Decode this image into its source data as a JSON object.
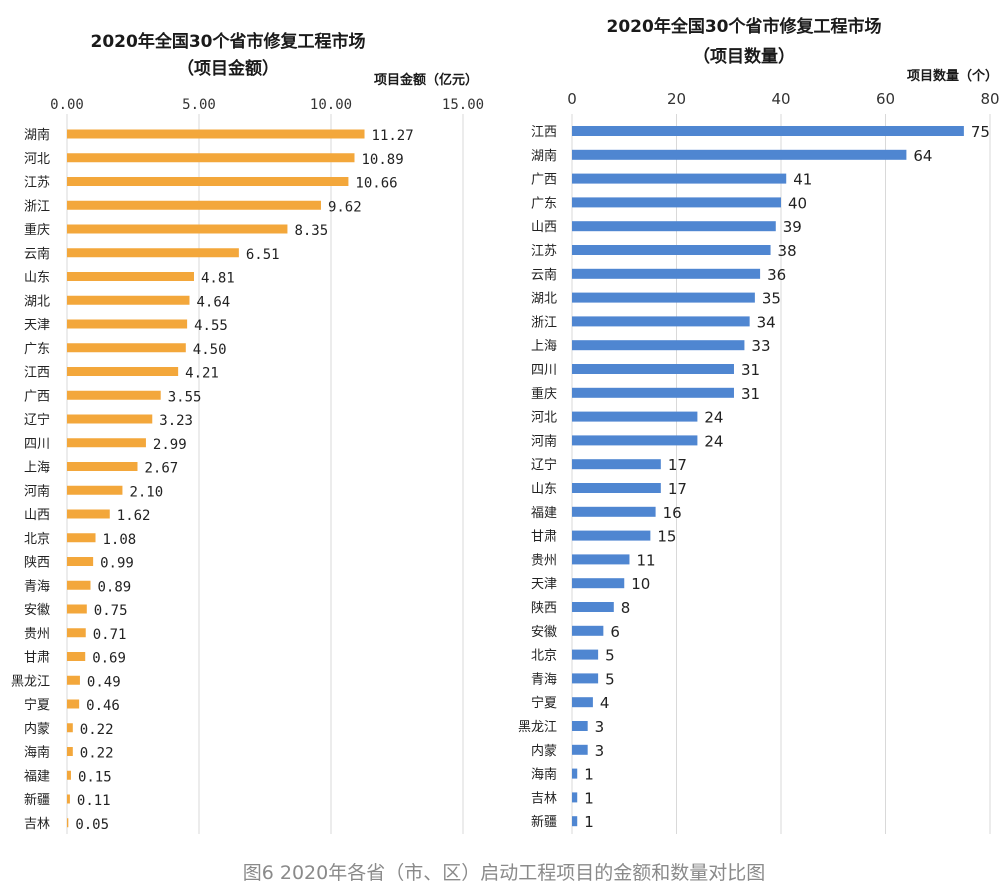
{
  "caption": "图6  2020年各省（市、区）启动工程项目的金额和数量对比图",
  "chart_data": [
    {
      "type": "bar",
      "orientation": "horizontal",
      "title": "2020年全国30个省市修复工程市场",
      "subtitle": "（项目金额）",
      "xlabel": "项目金额（亿元）",
      "xlim": [
        0,
        15
      ],
      "xticks": [
        "0.00",
        "5.00",
        "10.00",
        "15.00"
      ],
      "grid": true,
      "bar_color": "#f3a73b",
      "categories": [
        "湖南",
        "河北",
        "江苏",
        "浙江",
        "重庆",
        "云南",
        "山东",
        "湖北",
        "天津",
        "广东",
        "江西",
        "广西",
        "辽宁",
        "四川",
        "上海",
        "河南",
        "山西",
        "北京",
        "陕西",
        "青海",
        "安徽",
        "贵州",
        "甘肃",
        "黑龙江",
        "宁夏",
        "内蒙",
        "海南",
        "福建",
        "新疆",
        "吉林"
      ],
      "values": [
        11.27,
        10.89,
        10.66,
        9.62,
        8.35,
        6.51,
        4.81,
        4.64,
        4.55,
        4.5,
        4.21,
        3.55,
        3.23,
        2.99,
        2.67,
        2.1,
        1.62,
        1.08,
        0.99,
        0.89,
        0.75,
        0.71,
        0.69,
        0.49,
        0.46,
        0.22,
        0.22,
        0.15,
        0.11,
        0.05
      ],
      "value_labels": [
        "11.27",
        "10.89",
        "10.66",
        "9.62",
        "8.35",
        "6.51",
        "4.81",
        "4.64",
        "4.55",
        "4.50",
        "4.21",
        "3.55",
        "3.23",
        "2.99",
        "2.67",
        "2.10",
        "1.62",
        "1.08",
        "0.99",
        "0.89",
        "0.75",
        "0.71",
        "0.69",
        "0.49",
        "0.46",
        "0.22",
        "0.22",
        "0.15",
        "0.11",
        "0.05"
      ]
    },
    {
      "type": "bar",
      "orientation": "horizontal",
      "title": "2020年全国30个省市修复工程市场",
      "subtitle": "（项目数量）",
      "xlabel": "项目数量（个）",
      "xlim": [
        0,
        80
      ],
      "xticks": [
        "0",
        "20",
        "40",
        "60",
        "80"
      ],
      "grid": true,
      "bar_color": "#4f86d1",
      "categories": [
        "江西",
        "湖南",
        "广西",
        "广东",
        "山西",
        "江苏",
        "云南",
        "湖北",
        "浙江",
        "上海",
        "四川",
        "重庆",
        "河北",
        "河南",
        "辽宁",
        "山东",
        "福建",
        "甘肃",
        "贵州",
        "天津",
        "陕西",
        "安徽",
        "北京",
        "青海",
        "宁夏",
        "黑龙江",
        "内蒙",
        "海南",
        "吉林",
        "新疆"
      ],
      "values": [
        75,
        64,
        41,
        40,
        39,
        38,
        36,
        35,
        34,
        33,
        31,
        31,
        24,
        24,
        17,
        17,
        16,
        15,
        11,
        10,
        8,
        6,
        5,
        5,
        4,
        3,
        3,
        1,
        1,
        1
      ],
      "value_labels": [
        "75",
        "64",
        "41",
        "40",
        "39",
        "38",
        "36",
        "35",
        "34",
        "33",
        "31",
        "31",
        "24",
        "24",
        "17",
        "17",
        "16",
        "15",
        "11",
        "10",
        "8",
        "6",
        "5",
        "5",
        "4",
        "3",
        "3",
        "1",
        "1",
        "1"
      ]
    }
  ]
}
